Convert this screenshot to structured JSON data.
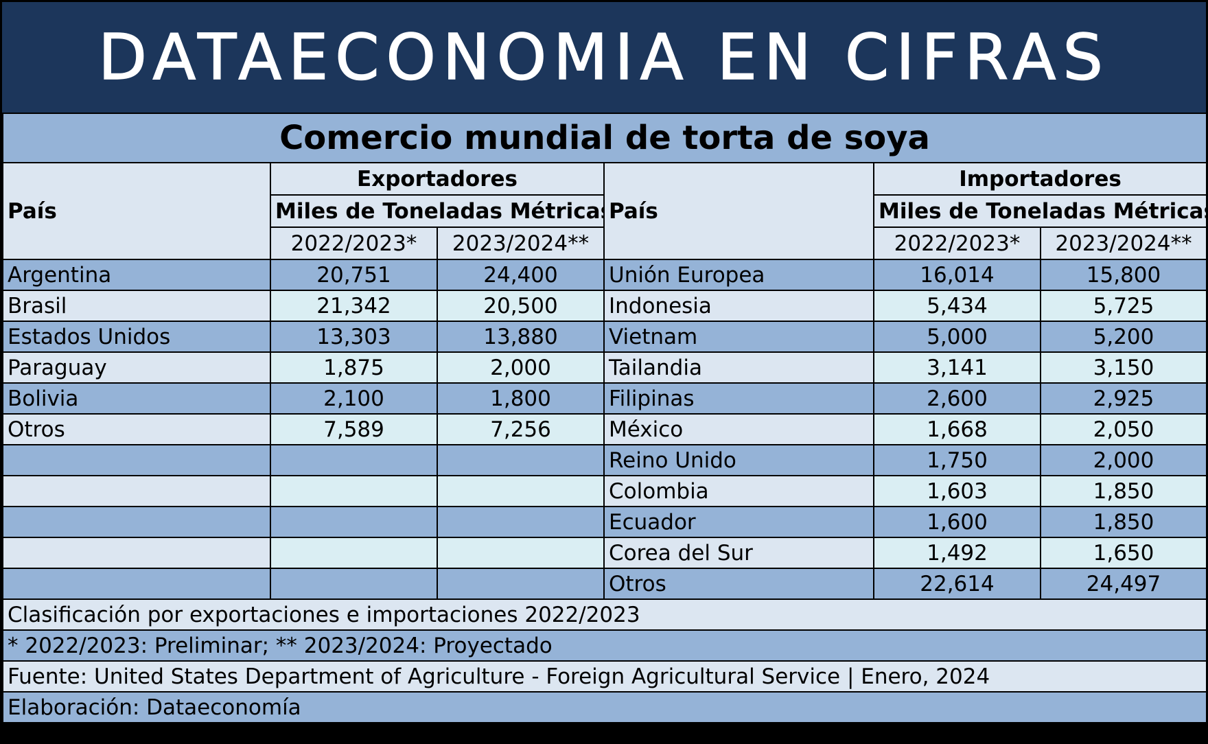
{
  "banner": {
    "title": "DATAECONOMIA EN CIFRAS"
  },
  "table": {
    "title": "Comercio mundial de torta de soya",
    "pais_label": "País",
    "exporters_label": "Exportadores",
    "importers_label": "Importadores",
    "unit_label": "Miles de Toneladas Métricas",
    "year1_label": "2022/2023*",
    "year2_label": "2023/2024**",
    "rows": [
      {
        "exp_country": "Argentina",
        "exp_y1": "20,751",
        "exp_y2": "24,400",
        "imp_country": "Unión Europea",
        "imp_y1": "16,014",
        "imp_y2": "15,800"
      },
      {
        "exp_country": "Brasil",
        "exp_y1": "21,342",
        "exp_y2": "20,500",
        "imp_country": "Indonesia",
        "imp_y1": "5,434",
        "imp_y2": "5,725"
      },
      {
        "exp_country": "Estados Unidos",
        "exp_y1": "13,303",
        "exp_y2": "13,880",
        "imp_country": "Vietnam",
        "imp_y1": "5,000",
        "imp_y2": "5,200"
      },
      {
        "exp_country": "Paraguay",
        "exp_y1": "1,875",
        "exp_y2": "2,000",
        "imp_country": "Tailandia",
        "imp_y1": "3,141",
        "imp_y2": "3,150"
      },
      {
        "exp_country": "Bolivia",
        "exp_y1": "2,100",
        "exp_y2": "1,800",
        "imp_country": "Filipinas",
        "imp_y1": "2,600",
        "imp_y2": "2,925"
      },
      {
        "exp_country": "Otros",
        "exp_y1": "7,589",
        "exp_y2": "7,256",
        "imp_country": "México",
        "imp_y1": "1,668",
        "imp_y2": "2,050"
      },
      {
        "exp_country": "",
        "exp_y1": "",
        "exp_y2": "",
        "imp_country": "Reino Unido",
        "imp_y1": "1,750",
        "imp_y2": "2,000"
      },
      {
        "exp_country": "",
        "exp_y1": "",
        "exp_y2": "",
        "imp_country": "Colombia",
        "imp_y1": "1,603",
        "imp_y2": "1,850"
      },
      {
        "exp_country": "",
        "exp_y1": "",
        "exp_y2": "",
        "imp_country": "Ecuador",
        "imp_y1": "1,600",
        "imp_y2": "1,850"
      },
      {
        "exp_country": "",
        "exp_y1": "",
        "exp_y2": "",
        "imp_country": "Corea del Sur",
        "imp_y1": "1,492",
        "imp_y2": "1,650"
      },
      {
        "exp_country": "",
        "exp_y1": "",
        "exp_y2": "",
        "imp_country": "Otros",
        "imp_y1": "22,614",
        "imp_y2": "24,497"
      }
    ]
  },
  "notes": {
    "classification": "Clasificación por exportaciones e importaciones 2022/2023",
    "legend": "* 2022/2023: Preliminar; ** 2023/2024: Proyectado",
    "source": "Fuente: United States Department of Agriculture - Foreign Agricultural Service | Enero, 2024",
    "credit": "Elaboración: Dataeconomía"
  },
  "colors": {
    "banner_bg": "#1c365b",
    "banner_text": "#ffffff",
    "medium_blue": "#95b3d7",
    "light_blue": "#dce6f1",
    "light_cyan": "#daeef3"
  }
}
